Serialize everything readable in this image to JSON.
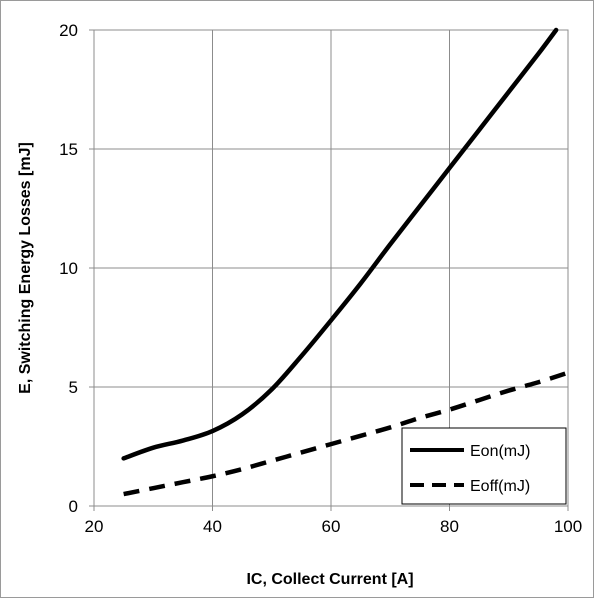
{
  "chart_data": {
    "type": "line",
    "title": "",
    "xlabel": "IC, Collect Current [A]",
    "ylabel": "E, Switching Energy Losses [mJ]",
    "xlim": [
      20,
      100
    ],
    "ylim": [
      0,
      20
    ],
    "xticks": [
      "20",
      "40",
      "60",
      "80",
      "100"
    ],
    "yticks": [
      "0",
      "5",
      "10",
      "15",
      "20"
    ],
    "grid": true,
    "legend_position": "bottom-right",
    "series": [
      {
        "name": "Eon(mJ)",
        "style": "solid",
        "color": "#000000",
        "x": [
          25,
          30,
          35,
          40,
          45,
          50,
          55,
          60,
          65,
          70,
          75,
          80,
          85,
          90,
          95,
          98
        ],
        "y": [
          2.0,
          2.45,
          2.75,
          3.15,
          3.85,
          4.9,
          6.3,
          7.8,
          9.35,
          11.0,
          12.6,
          14.2,
          15.8,
          17.4,
          19.0,
          20.0
        ]
      },
      {
        "name": "Eoff(mJ)",
        "style": "dashed",
        "color": "#000000",
        "x": [
          25,
          30,
          35,
          40,
          45,
          50,
          55,
          60,
          65,
          70,
          75,
          80,
          85,
          90,
          95,
          100
        ],
        "y": [
          0.5,
          0.75,
          1.0,
          1.25,
          1.55,
          1.9,
          2.25,
          2.6,
          2.95,
          3.3,
          3.7,
          4.05,
          4.45,
          4.85,
          5.2,
          5.6
        ]
      }
    ]
  }
}
